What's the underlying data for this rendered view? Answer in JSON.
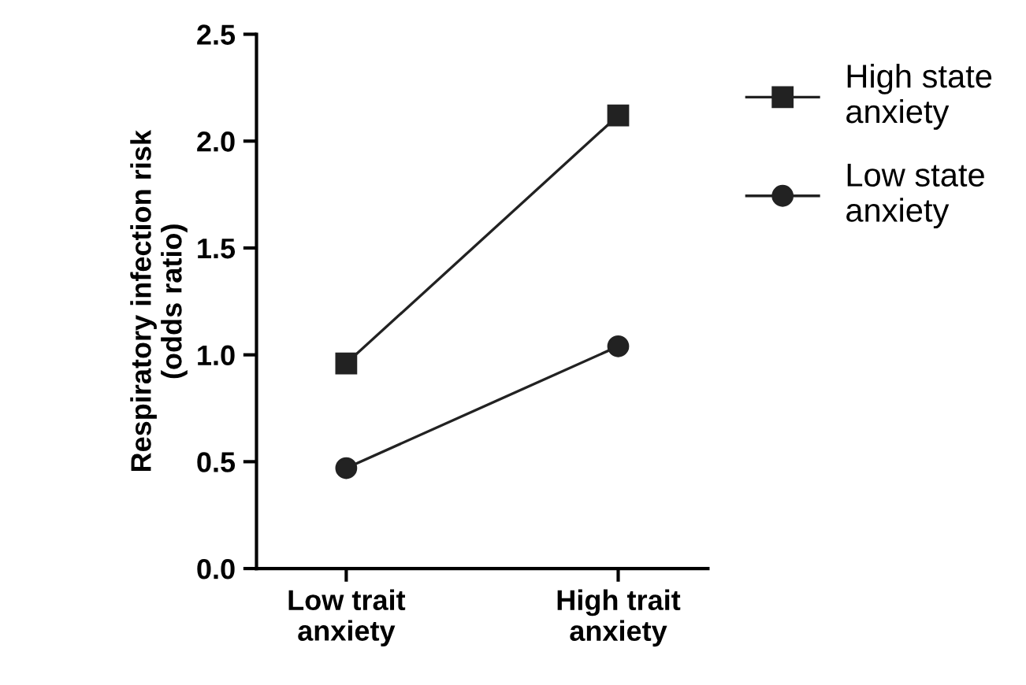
{
  "chart_data": {
    "type": "line",
    "ylabel": "Respiratory infection risk\n(odds ratio)",
    "categories": [
      "Low trait\nanxiety",
      "High trait\nanxiety"
    ],
    "series": [
      {
        "name": "High state\nanxiety",
        "color": "#222222",
        "values": [
          0.96,
          2.12
        ],
        "marker": "square"
      },
      {
        "name": "Low state\nanxiety",
        "color": "#222222",
        "values": [
          0.47,
          1.04
        ],
        "marker": "circle"
      }
    ],
    "ylim": [
      0,
      2.5
    ],
    "yticks": [
      {
        "value": 0,
        "label": "0.0"
      },
      0.5,
      {
        "value": 1,
        "label": "1.0"
      },
      1.5,
      {
        "value": 2,
        "label": "2.0"
      },
      2.5
    ],
    "grid": false,
    "legend": "right",
    "line_style": "solid"
  }
}
